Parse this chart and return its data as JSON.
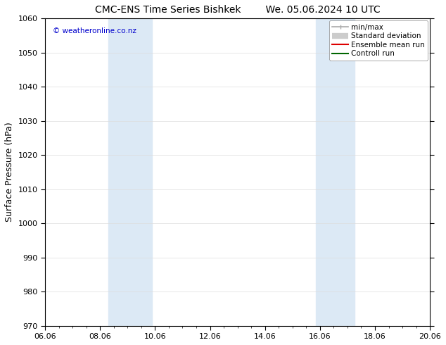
{
  "title_left": "CMC-ENS Time Series Bishkek",
  "title_right": "We. 05.06.2024 10 UTC",
  "ylabel": "Surface Pressure (hPa)",
  "ylim": [
    970,
    1060
  ],
  "yticks": [
    970,
    980,
    990,
    1000,
    1010,
    1020,
    1030,
    1040,
    1050,
    1060
  ],
  "xtick_labels": [
    "06.06",
    "08.06",
    "10.06",
    "12.06",
    "14.06",
    "16.06",
    "18.06",
    "20.06"
  ],
  "xtick_positions": [
    0,
    2,
    4,
    6,
    8,
    10,
    12,
    14
  ],
  "xlim": [
    0,
    14
  ],
  "shaded_bands": [
    {
      "xmin": 2.3,
      "xmax": 3.9,
      "color": "#dce9f5"
    },
    {
      "xmin": 9.85,
      "xmax": 11.25,
      "color": "#dce9f5"
    }
  ],
  "watermark": "© weatheronline.co.nz",
  "watermark_color": "#0000cc",
  "legend_items": [
    {
      "label": "min/max",
      "color": "#aaaaaa",
      "lw": 1.2
    },
    {
      "label": "Standard deviation",
      "color": "#cccccc",
      "lw": 6
    },
    {
      "label": "Ensemble mean run",
      "color": "#dd0000",
      "lw": 1.5
    },
    {
      "label": "Controll run",
      "color": "#006600",
      "lw": 1.5
    }
  ],
  "bg_color": "#ffffff",
  "spine_color": "#000000",
  "grid_color": "#dddddd",
  "title_fontsize": 10,
  "tick_fontsize": 8,
  "ylabel_fontsize": 9
}
